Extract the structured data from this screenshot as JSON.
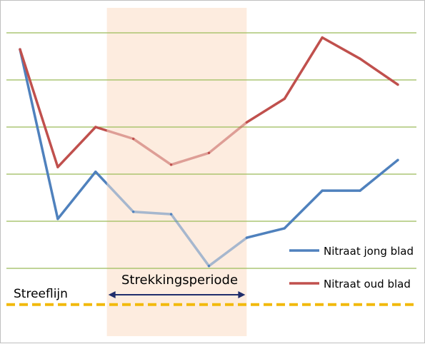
{
  "chart_data": {
    "type": "line",
    "title": "",
    "xlabel": "",
    "ylabel": "",
    "x": [
      1,
      2,
      3,
      4,
      5,
      6,
      7,
      8,
      9,
      10,
      11
    ],
    "ylim": [
      0,
      6
    ],
    "grid": true,
    "legend_position": "bottom-right",
    "series": [
      {
        "name": "Nitraat jong blad",
        "color": "#4f81bd",
        "values": [
          4.65,
          1.05,
          2.05,
          1.2,
          1.15,
          0.05,
          0.65,
          0.85,
          1.65,
          1.65,
          2.3
        ]
      },
      {
        "name": "Nitraat oud blad",
        "color": "#c0504d",
        "values": [
          4.65,
          2.15,
          3.0,
          2.75,
          2.2,
          2.45,
          3.1,
          3.6,
          4.9,
          4.45,
          3.9
        ]
      }
    ],
    "highlight_band": {
      "label": "Strekkingsperiode",
      "x_from": 3.3,
      "x_to": 7.0,
      "color": "#fde9d9"
    },
    "reference_line": {
      "label": "Streeflijn",
      "y": -0.8,
      "color": "#f2b90c"
    },
    "gridline_color": "#9bbb59"
  }
}
